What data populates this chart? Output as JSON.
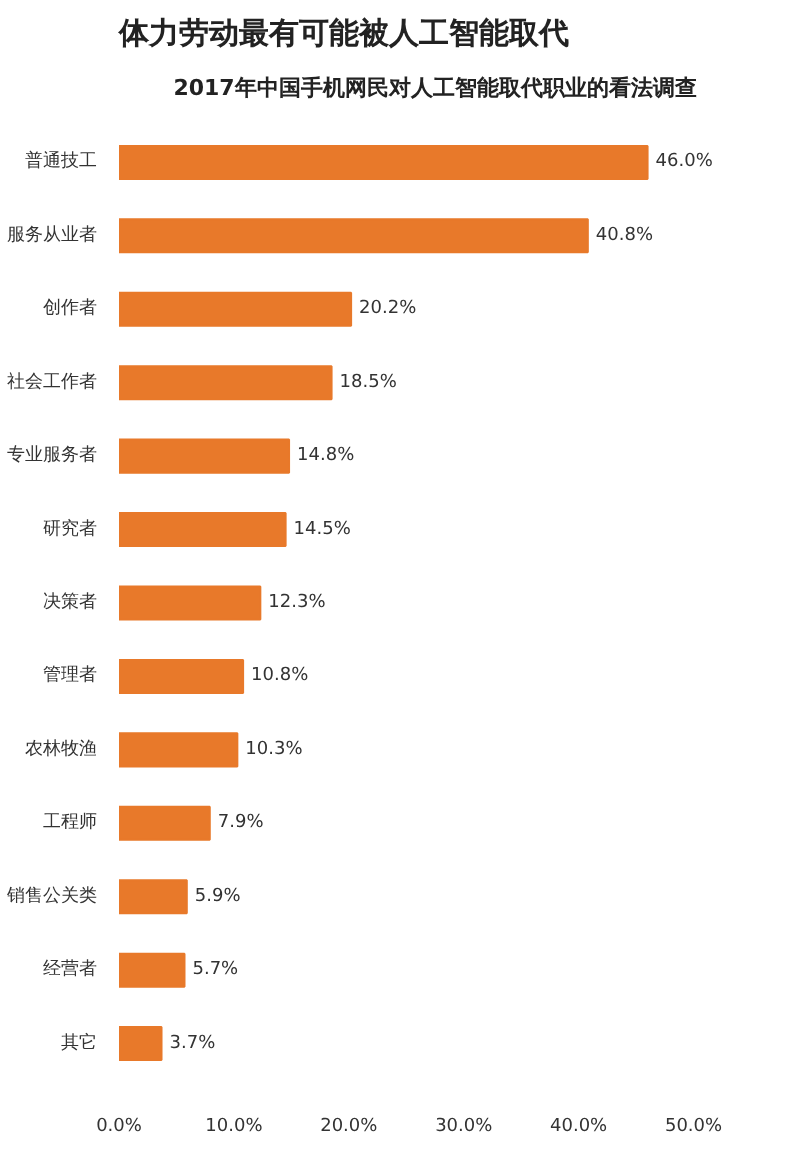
{
  "chart_data": {
    "type": "bar",
    "orientation": "horizontal",
    "title": "体力劳动最有可能被人工智能取代",
    "subtitle": "2017年中国手机网民对人工智能取代职业的看法调查",
    "categories": [
      "普通技工",
      "服务从业者",
      "创作者",
      "社会工作者",
      "专业服务者",
      "研究者",
      "决策者",
      "管理者",
      "农林牧渔",
      "工程师",
      "销售公关类",
      "经营者",
      "其它"
    ],
    "values": [
      46.0,
      40.8,
      20.2,
      18.5,
      14.8,
      14.5,
      12.3,
      10.8,
      10.3,
      7.9,
      5.9,
      5.7,
      3.7
    ],
    "value_labels": [
      "46.0%",
      "40.8%",
      "20.2%",
      "18.5%",
      "14.8%",
      "14.5%",
      "12.3%",
      "10.8%",
      "10.3%",
      "7.9%",
      "5.9%",
      "5.7%",
      "3.7%"
    ],
    "color": "#e8792a",
    "xlim": [
      0,
      50
    ],
    "xticks": [
      {
        "value": 0,
        "label": "0.0%"
      },
      {
        "value": 10,
        "label": "10.0%"
      },
      {
        "value": 20,
        "label": "20.0%"
      },
      {
        "value": 30,
        "label": "30.0%"
      },
      {
        "value": 40,
        "label": "40.0%"
      },
      {
        "value": 50,
        "label": "50.0%"
      }
    ],
    "grid": false
  }
}
